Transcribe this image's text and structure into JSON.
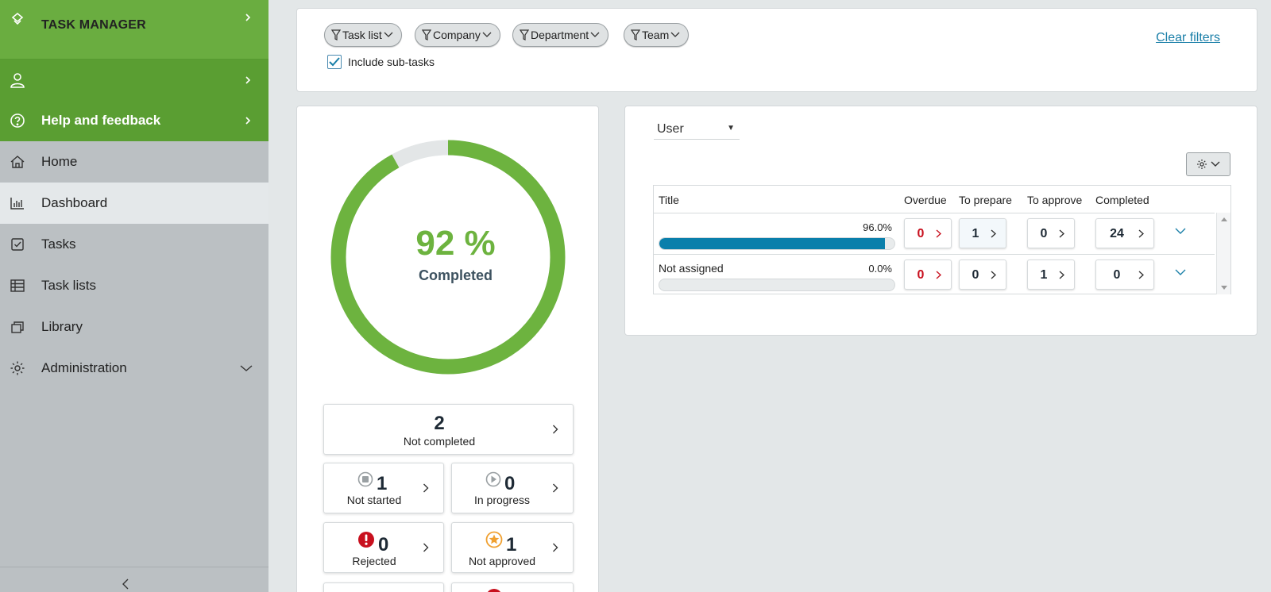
{
  "sidebar": {
    "app_title": "TASK MANAGER",
    "user_label": "",
    "help_label": "Help and feedback",
    "items": [
      {
        "label": "Home",
        "icon": "home-icon"
      },
      {
        "label": "Dashboard",
        "icon": "bar-chart-icon",
        "active": true
      },
      {
        "label": "Tasks",
        "icon": "checkbox-icon"
      },
      {
        "label": "Task lists",
        "icon": "table-icon"
      },
      {
        "label": "Library",
        "icon": "library-icon"
      },
      {
        "label": "Administration",
        "icon": "gear-icon",
        "expandable": true
      }
    ]
  },
  "filters": {
    "chips": [
      "Task list",
      "Company",
      "Department",
      "Team"
    ],
    "include_subtasks_label": "Include sub-tasks",
    "include_subtasks_checked": true,
    "clear_label": "Clear filters"
  },
  "summary": {
    "percent_text": "92 %",
    "percent_value": 92,
    "percent_label": "Completed",
    "not_completed": {
      "value": "2",
      "label": "Not completed"
    },
    "not_started": {
      "value": "1",
      "label": "Not started"
    },
    "in_progress": {
      "value": "0",
      "label": "In progress"
    },
    "rejected": {
      "value": "0",
      "label": "Rejected"
    },
    "not_approved": {
      "value": "1",
      "label": "Not approved"
    }
  },
  "breakdown": {
    "group_by": "User",
    "columns": [
      "Title",
      "Overdue",
      "To prepare",
      "To approve",
      "Completed"
    ],
    "rows": [
      {
        "title": "",
        "pct": "96.0%",
        "pct_value": 96,
        "overdue": "0",
        "to_prepare": "1",
        "to_approve": "0",
        "completed": "24"
      },
      {
        "title": "Not assigned",
        "pct": "0.0%",
        "pct_value": 0,
        "overdue": "0",
        "to_prepare": "0",
        "to_approve": "1",
        "completed": "0"
      }
    ]
  },
  "colors": {
    "sidebar_green": "#64a83c",
    "donut_green": "#6db33f",
    "progress_blue": "#0a7fab",
    "overdue_red": "#c8101e",
    "link_blue": "#1a7fa8"
  }
}
